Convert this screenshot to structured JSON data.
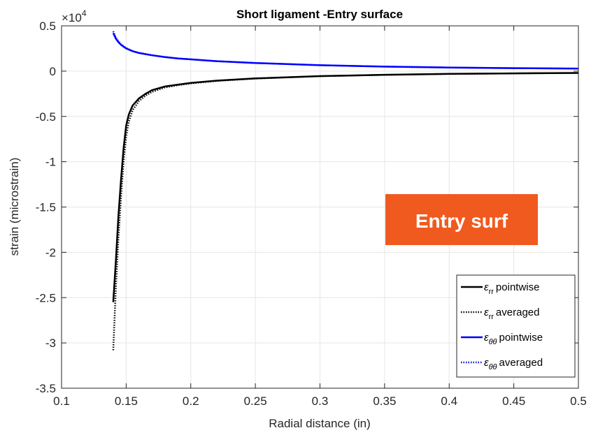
{
  "chart_data": {
    "type": "line",
    "title": "Short ligament -Entry surface",
    "xlabel": "Radial distance (in)",
    "ylabel": "strain (microstrain)",
    "y_exponent_label": "×10",
    "y_exponent_power": "4",
    "xlim": [
      0.1,
      0.5
    ],
    "ylim": [
      -3.5,
      0.5
    ],
    "x_ticks": [
      0.1,
      0.15,
      0.2,
      0.25,
      0.3,
      0.35,
      0.4,
      0.45,
      0.5
    ],
    "x_tick_labels": [
      "0.1",
      "0.15",
      "0.2",
      "0.25",
      "0.3",
      "0.35",
      "0.4",
      "0.45",
      "0.5"
    ],
    "y_ticks": [
      0.5,
      0,
      -0.5,
      -1,
      -1.5,
      -2,
      -2.5,
      -3,
      -3.5
    ],
    "y_tick_labels": [
      "0.5",
      "0",
      "-0.5",
      "-1",
      "-1.5",
      "-2",
      "-2.5",
      "-3",
      "-3.5"
    ],
    "grid": true,
    "legend_position": "bottom-right",
    "series": [
      {
        "name": "εrr pointwise",
        "legend_symbol": "ε",
        "legend_sub": "rr",
        "legend_text": "pointwise",
        "color": "#000000",
        "style": "solid",
        "x": [
          0.14,
          0.142,
          0.144,
          0.146,
          0.148,
          0.15,
          0.152,
          0.155,
          0.16,
          0.165,
          0.17,
          0.18,
          0.19,
          0.2,
          0.22,
          0.25,
          0.3,
          0.35,
          0.4,
          0.45,
          0.5
        ],
        "y": [
          -2.55,
          -2.1,
          -1.6,
          -1.2,
          -0.85,
          -0.6,
          -0.48,
          -0.38,
          -0.3,
          -0.25,
          -0.21,
          -0.17,
          -0.15,
          -0.13,
          -0.105,
          -0.08,
          -0.055,
          -0.04,
          -0.03,
          -0.025,
          -0.02
        ]
      },
      {
        "name": "εrr averaged",
        "legend_symbol": "ε",
        "legend_sub": "rr",
        "legend_text": "averaged",
        "color": "#000000",
        "style": "dotted",
        "x": [
          0.14,
          0.142,
          0.144,
          0.146,
          0.148,
          0.15,
          0.152,
          0.155,
          0.16,
          0.165,
          0.17,
          0.18,
          0.19,
          0.2,
          0.22,
          0.25,
          0.3,
          0.35,
          0.4,
          0.45,
          0.5
        ],
        "y": [
          -3.08,
          -2.4,
          -1.85,
          -1.4,
          -1.0,
          -0.72,
          -0.56,
          -0.43,
          -0.33,
          -0.27,
          -0.23,
          -0.18,
          -0.155,
          -0.135,
          -0.108,
          -0.082,
          -0.056,
          -0.041,
          -0.031,
          -0.025,
          -0.02
        ]
      },
      {
        "name": "εθθ pointwise",
        "legend_symbol": "ε",
        "legend_sub": "θθ",
        "legend_text": "pointwise",
        "color": "#0000ff",
        "style": "solid",
        "x": [
          0.14,
          0.142,
          0.144,
          0.146,
          0.148,
          0.15,
          0.155,
          0.16,
          0.17,
          0.18,
          0.19,
          0.2,
          0.22,
          0.25,
          0.3,
          0.35,
          0.4,
          0.45,
          0.5
        ],
        "y": [
          0.42,
          0.36,
          0.32,
          0.29,
          0.27,
          0.25,
          0.22,
          0.2,
          0.175,
          0.155,
          0.14,
          0.13,
          0.11,
          0.09,
          0.065,
          0.05,
          0.04,
          0.033,
          0.028
        ]
      },
      {
        "name": "εθθ averaged",
        "legend_symbol": "ε",
        "legend_sub": "θθ",
        "legend_text": "averaged",
        "color": "#0000ff",
        "style": "dotted",
        "x": [
          0.14,
          0.142,
          0.144,
          0.146,
          0.148,
          0.15,
          0.155,
          0.16,
          0.17,
          0.18,
          0.19,
          0.2,
          0.22,
          0.25,
          0.3,
          0.35,
          0.4,
          0.45,
          0.5
        ],
        "y": [
          0.44,
          0.37,
          0.33,
          0.295,
          0.275,
          0.255,
          0.222,
          0.202,
          0.176,
          0.156,
          0.141,
          0.13,
          0.11,
          0.09,
          0.065,
          0.05,
          0.04,
          0.033,
          0.028
        ]
      }
    ],
    "annotation": {
      "text": "Entry surf",
      "background_color": "#f05a1e",
      "text_color": "#ffffff"
    }
  }
}
